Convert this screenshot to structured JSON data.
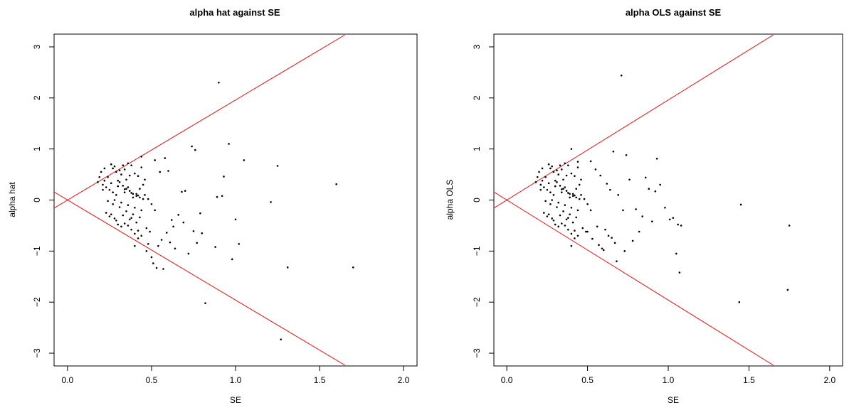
{
  "chart_data": [
    {
      "type": "scatter",
      "title": "alpha hat against SE",
      "xlabel": "SE",
      "ylabel": "alpha hat",
      "xlim": [
        -0.08,
        2.08
      ],
      "ylim": [
        -3.25,
        3.25
      ],
      "xticks": [
        0.0,
        0.5,
        1.0,
        1.5,
        2.0
      ],
      "xtick_labels": [
        "0.0",
        "0.5",
        "1.0",
        "1.5",
        "2.0"
      ],
      "yticks": [
        -3,
        -2,
        -1,
        0,
        1,
        2,
        3
      ],
      "ytick_labels": [
        "−3",
        "−2",
        "−1",
        "0",
        "1",
        "2",
        "3"
      ],
      "grid": false,
      "reference_lines": [
        {
          "color": "#e41a1c",
          "x": [
            -0.08,
            1.65
          ],
          "y": [
            -0.157,
            3.234
          ]
        },
        {
          "color": "#e41a1c",
          "x": [
            -0.08,
            1.65
          ],
          "y": [
            0.157,
            -3.234
          ]
        }
      ],
      "points_summary": "scattered points",
      "x": [
        0.9,
        0.96,
        1.05,
        1.25,
        1.6,
        0.74,
        0.76,
        0.93,
        0.92,
        0.89,
        1.0,
        1.21,
        1.7,
        1.31,
        1.02,
        0.82,
        1.27,
        0.88,
        0.98,
        0.6,
        0.58,
        0.52,
        0.55,
        0.7,
        0.68,
        0.79,
        0.8,
        0.63,
        0.62,
        0.66,
        0.53,
        0.57,
        0.47,
        0.5,
        0.51,
        0.56,
        0.54,
        0.48,
        0.59,
        0.61,
        0.64,
        0.72,
        0.75,
        0.77,
        0.69,
        0.2,
        0.22,
        0.24,
        0.26,
        0.28,
        0.3,
        0.32,
        0.34,
        0.36,
        0.38,
        0.4,
        0.42,
        0.44,
        0.46,
        0.21,
        0.23,
        0.25,
        0.27,
        0.29,
        0.31,
        0.33,
        0.35,
        0.37,
        0.39,
        0.41,
        0.43,
        0.45,
        0.19,
        0.22,
        0.26,
        0.3,
        0.34,
        0.38,
        0.42,
        0.28,
        0.32,
        0.36,
        0.4,
        0.44,
        0.24,
        0.27,
        0.31,
        0.35,
        0.39,
        0.43,
        0.33,
        0.37,
        0.41,
        0.29,
        0.25,
        0.23,
        0.47,
        0.49,
        0.36,
        0.38,
        0.4,
        0.42,
        0.44,
        0.34,
        0.32,
        0.3,
        0.28,
        0.26,
        0.39,
        0.41,
        0.43,
        0.45,
        0.35,
        0.37,
        0.31,
        0.33,
        0.27,
        0.29,
        0.21,
        0.18,
        0.46,
        0.48,
        0.5,
        0.52,
        0.44,
        0.42,
        0.4,
        0.38,
        0.36,
        0.34
      ],
      "y": [
        2.3,
        1.1,
        0.78,
        0.67,
        0.31,
        1.05,
        0.98,
        0.46,
        0.08,
        0.06,
        -0.38,
        -0.04,
        -1.32,
        -1.32,
        -0.86,
        -2.02,
        -2.73,
        -0.92,
        -1.16,
        0.57,
        0.82,
        0.78,
        0.55,
        0.18,
        0.16,
        -0.26,
        -0.65,
        -0.52,
        -0.39,
        -0.29,
        -1.33,
        -1.35,
        -1.0,
        -1.12,
        -1.24,
        -0.78,
        -0.9,
        -0.86,
        -0.64,
        -0.83,
        -0.95,
        -1.05,
        -0.61,
        -0.84,
        -0.44,
        0.55,
        0.62,
        0.45,
        0.7,
        0.66,
        0.38,
        0.5,
        0.6,
        0.72,
        0.68,
        0.52,
        0.47,
        0.64,
        0.4,
        0.3,
        0.25,
        0.2,
        0.15,
        0.1,
        0.35,
        0.28,
        0.22,
        0.18,
        0.12,
        0.08,
        0.05,
        0.02,
        0.45,
        0.38,
        0.33,
        0.27,
        0.21,
        0.14,
        0.09,
        0.0,
        -0.05,
        -0.1,
        -0.15,
        -0.2,
        -0.02,
        -0.08,
        -0.14,
        -0.22,
        -0.28,
        -0.34,
        -0.3,
        -0.38,
        -0.44,
        -0.4,
        -0.32,
        -0.25,
        -0.55,
        -0.62,
        -0.5,
        -0.58,
        -0.66,
        -0.6,
        -0.7,
        -0.46,
        -0.52,
        -0.48,
        -0.36,
        -0.28,
        0.05,
        0.12,
        0.22,
        0.3,
        0.4,
        0.48,
        0.58,
        0.68,
        0.62,
        0.55,
        0.2,
        0.35,
        0.1,
        0.02,
        -0.08,
        -0.2,
        0.85,
        -0.75,
        -0.9,
        -0.35,
        0.25,
        0.15
      ]
    },
    {
      "type": "scatter",
      "title": "alpha OLS against SE",
      "xlabel": "SE",
      "ylabel": "alpha OLS",
      "xlim": [
        -0.08,
        2.08
      ],
      "ylim": [
        -3.25,
        3.25
      ],
      "xticks": [
        0.0,
        0.5,
        1.0,
        1.5,
        2.0
      ],
      "xtick_labels": [
        "0.0",
        "0.5",
        "1.0",
        "1.5",
        "2.0"
      ],
      "yticks": [
        -3,
        -2,
        -1,
        0,
        1,
        2,
        3
      ],
      "ytick_labels": [
        "−3",
        "−2",
        "−1",
        "0",
        "1",
        "2",
        "3"
      ],
      "grid": false,
      "reference_lines": [
        {
          "color": "#e41a1c",
          "x": [
            -0.08,
            1.65
          ],
          "y": [
            -0.157,
            3.234
          ]
        },
        {
          "color": "#e41a1c",
          "x": [
            -0.08,
            1.65
          ],
          "y": [
            0.157,
            -3.234
          ]
        }
      ],
      "x": [
        0.71,
        0.4,
        0.66,
        0.74,
        0.93,
        0.76,
        0.86,
        0.95,
        0.88,
        0.92,
        1.03,
        1.06,
        1.08,
        1.07,
        1.05,
        1.45,
        1.44,
        1.75,
        1.74,
        0.52,
        0.55,
        0.58,
        0.62,
        0.64,
        0.69,
        0.72,
        0.8,
        0.84,
        0.9,
        0.98,
        1.01,
        0.6,
        0.57,
        0.53,
        0.5,
        0.56,
        0.61,
        0.65,
        0.68,
        0.73,
        0.78,
        0.82,
        0.67,
        0.63,
        0.59,
        0.2,
        0.22,
        0.24,
        0.26,
        0.28,
        0.3,
        0.32,
        0.34,
        0.36,
        0.38,
        0.4,
        0.42,
        0.44,
        0.46,
        0.21,
        0.23,
        0.25,
        0.27,
        0.29,
        0.31,
        0.33,
        0.35,
        0.37,
        0.39,
        0.41,
        0.43,
        0.45,
        0.19,
        0.22,
        0.26,
        0.3,
        0.34,
        0.38,
        0.42,
        0.28,
        0.32,
        0.36,
        0.4,
        0.44,
        0.24,
        0.27,
        0.31,
        0.35,
        0.39,
        0.43,
        0.33,
        0.37,
        0.41,
        0.29,
        0.25,
        0.23,
        0.47,
        0.49,
        0.36,
        0.38,
        0.4,
        0.42,
        0.44,
        0.34,
        0.32,
        0.3,
        0.28,
        0.26,
        0.39,
        0.41,
        0.43,
        0.45,
        0.35,
        0.37,
        0.31,
        0.33,
        0.27,
        0.29,
        0.21,
        0.18,
        0.46,
        0.48,
        0.5,
        0.52,
        0.44,
        0.42,
        0.4,
        0.38,
        0.36,
        0.34
      ],
      "y": [
        2.44,
        1.0,
        0.95,
        0.88,
        0.81,
        0.4,
        0.44,
        0.3,
        0.22,
        0.17,
        -0.35,
        -0.48,
        -0.5,
        -1.42,
        -1.05,
        -0.09,
        -2.0,
        -0.5,
        -1.76,
        0.76,
        0.6,
        0.48,
        0.32,
        0.2,
        0.1,
        -0.2,
        -0.18,
        -0.32,
        -0.42,
        -0.15,
        -0.38,
        -0.98,
        -0.88,
        -0.76,
        -0.62,
        -0.52,
        -0.58,
        -0.74,
        -1.2,
        -1.0,
        -0.8,
        -0.62,
        -0.84,
        -0.7,
        -0.95,
        0.55,
        0.62,
        0.45,
        0.7,
        0.66,
        0.38,
        0.5,
        0.6,
        0.72,
        0.68,
        0.52,
        0.47,
        0.64,
        0.4,
        0.3,
        0.25,
        0.2,
        0.15,
        0.1,
        0.35,
        0.28,
        0.22,
        0.18,
        0.12,
        0.08,
        0.05,
        0.02,
        0.45,
        0.38,
        0.33,
        0.27,
        0.21,
        0.14,
        0.09,
        0.0,
        -0.05,
        -0.1,
        -0.15,
        -0.2,
        -0.02,
        -0.08,
        -0.14,
        -0.22,
        -0.28,
        -0.34,
        -0.3,
        -0.38,
        -0.44,
        -0.4,
        -0.32,
        -0.25,
        -0.55,
        -0.62,
        -0.5,
        -0.58,
        -0.66,
        -0.6,
        -0.7,
        -0.46,
        -0.52,
        -0.48,
        -0.36,
        -0.28,
        0.05,
        0.12,
        0.22,
        0.3,
        0.4,
        0.48,
        0.58,
        0.68,
        0.62,
        0.55,
        0.2,
        0.35,
        0.1,
        0.02,
        -0.08,
        -0.2,
        0.75,
        -0.75,
        -0.9,
        -0.35,
        0.25,
        0.15
      ]
    }
  ]
}
